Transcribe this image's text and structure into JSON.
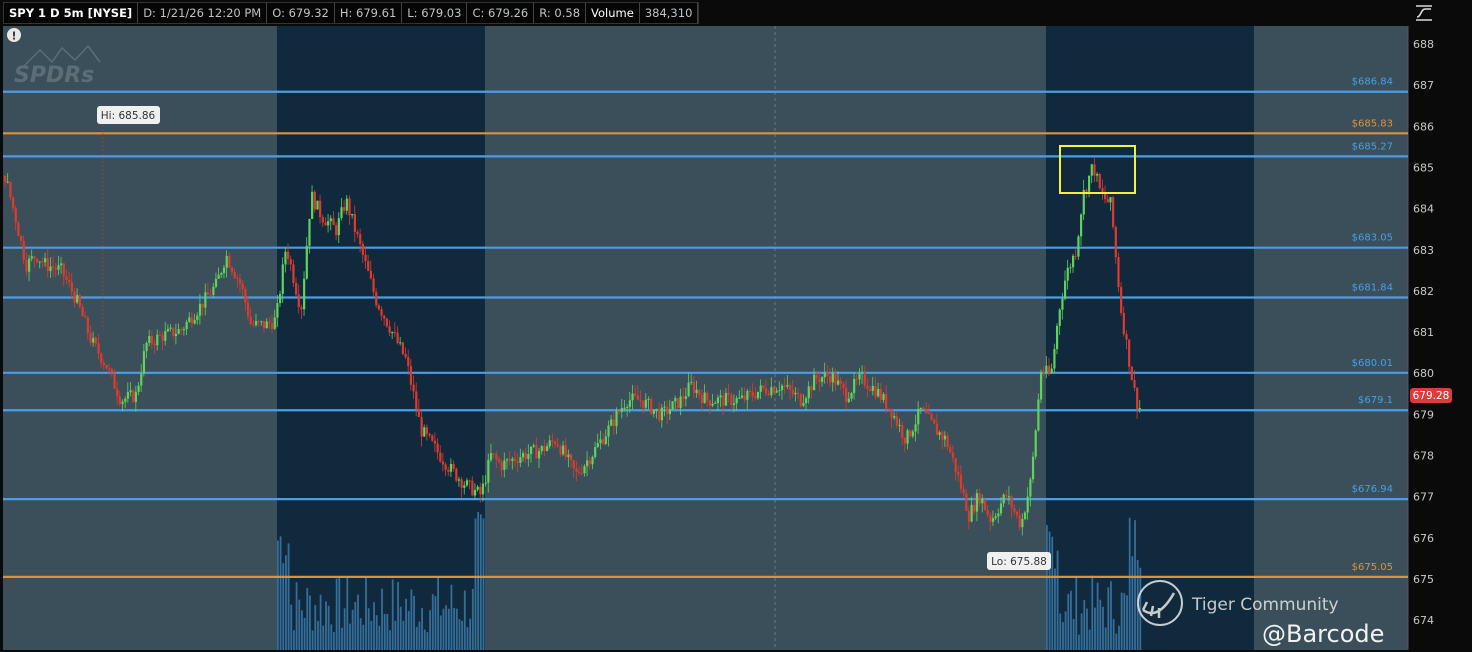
{
  "header": {
    "symbol": "SPY 1 D 5m [NYSE]",
    "date": "D: 1/21/26 12:20 PM",
    "open": "O: 679.32",
    "high": "H: 679.61",
    "low": "L: 679.03",
    "close": "C: 679.26",
    "range": "R: 0.58",
    "volume_label": "Volume",
    "volume_value": "384,310"
  },
  "watermarks": {
    "spdrs_logo": "SPDRs",
    "tiger": "Tiger Community",
    "handle": "@Barcode"
  },
  "colors": {
    "up": "#5fd35a",
    "down": "#e03a2e",
    "level_blue": "#4a9ee8",
    "level_orange": "#e0903a",
    "last_price_badge": "#e03a3a",
    "extended_hours_bg": "#3a4f5a",
    "regular_hours_bg": "#10293d",
    "highlight_box": "#f2f23a"
  },
  "chart_data": {
    "type": "candlestick",
    "symbol": "SPY",
    "interval": "5m",
    "ylim": [
      673.5,
      688.5
    ],
    "y_ticks": [
      "688",
      "687",
      "686",
      "685",
      "684",
      "683",
      "682",
      "681",
      "680",
      "679",
      "678",
      "677",
      "676",
      "675",
      "674"
    ],
    "last_price": "679.28",
    "high_marker": "Hi: 685.86",
    "low_marker": "Lo: 675.88",
    "levels": [
      {
        "price": 686.84,
        "label": "$686.84",
        "color": "blue"
      },
      {
        "price": 685.83,
        "label": "$685.83",
        "color": "orange"
      },
      {
        "price": 685.27,
        "label": "$685.27",
        "color": "blue"
      },
      {
        "price": 683.05,
        "label": "$683.05",
        "color": "blue"
      },
      {
        "price": 681.84,
        "label": "$681.84",
        "color": "blue"
      },
      {
        "price": 680.01,
        "label": "$680.01",
        "color": "blue"
      },
      {
        "price": 679.1,
        "label": "$679.1",
        "color": "blue"
      },
      {
        "price": 676.94,
        "label": "$676.94",
        "color": "blue"
      },
      {
        "price": 675.05,
        "label": "$675.05",
        "color": "orange"
      }
    ],
    "price_path": [
      684.7,
      683.72,
      682.63,
      682.87,
      682.63,
      682.5,
      681.8,
      680.8,
      680.2,
      679.35,
      679.47,
      680.7,
      680.9,
      681.05,
      681.66,
      682.14,
      682.87,
      682.14,
      681.17,
      681.17,
      681.3,
      683.1,
      681.54,
      684.33,
      683.84,
      683.48,
      684.2,
      683.0,
      681.78,
      681.05,
      680.32,
      678.62,
      678.13,
      677.65,
      677.28,
      677.04,
      678.0,
      677.77,
      678.0,
      678.13,
      678.38,
      677.53,
      678.0,
      678.74,
      679.35,
      679.35,
      678.98,
      679.35,
      679.71,
      679.35,
      679.35,
      679.35,
      679.59,
      679.71,
      679.35,
      679.88,
      679.95,
      679.47,
      679.88,
      679.59,
      679.1,
      678.38,
      679.1,
      678.62,
      678.38,
      677.65,
      676.55,
      677.04,
      676.43,
      677.04,
      676.31,
      677.4,
      680.08,
      679.95,
      681.54,
      682.39,
      683.0,
      684.33,
      685.06,
      684.33,
      684.09,
      682.75,
      681.54,
      680.32,
      679.59,
      679.1,
      679.26
    ]
  }
}
